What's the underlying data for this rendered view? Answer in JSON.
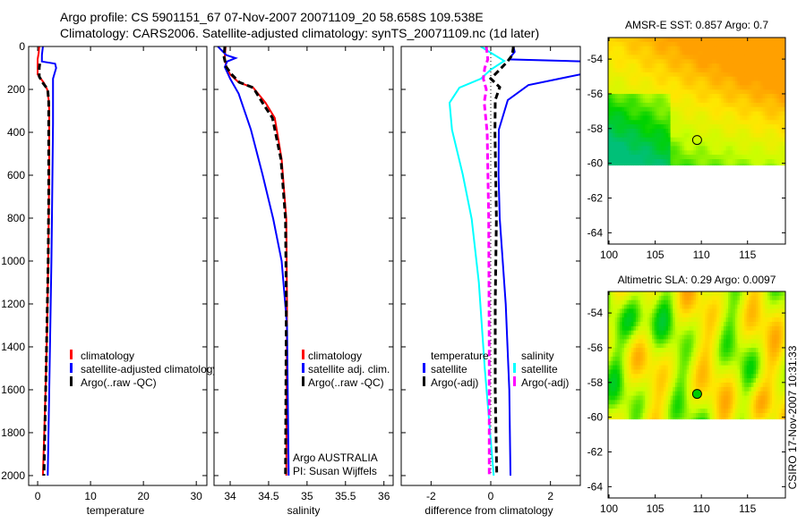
{
  "title": {
    "line1": "Argo profile: CS 5901151_67 07-Nov-2007 20071109_20 58.658S 109.538E",
    "line2": "Climatology: CARS2006. Satellite-adjusted climatology: synTS_20071109.nc (1d later)"
  },
  "credit": "CSIRO 17-Nov-2007 10:31:33",
  "chart_data": [
    {
      "type": "line",
      "xlabel": "temperature",
      "ylabel": "",
      "xlim": [
        -1.7,
        32
      ],
      "ylim": [
        2046,
        0
      ],
      "xticks": [
        0,
        10,
        20,
        30
      ],
      "yticks": [
        0,
        200,
        400,
        600,
        800,
        1000,
        1200,
        1400,
        1600,
        1800,
        2000
      ],
      "legend": [
        "climatology",
        "satellite-adjusted climatology",
        "Argo(..raw -QC)"
      ],
      "series": [
        {
          "name": "climatology",
          "color": "#ff0000",
          "dash": false,
          "depth": [
            0,
            30,
            60,
            100,
            130,
            150,
            170,
            200,
            250,
            300,
            500,
            800,
            1000,
            1300,
            1600,
            2000
          ],
          "values": [
            0.3,
            0.2,
            0.0,
            0.0,
            0.0,
            0.6,
            1.2,
            1.8,
            2.1,
            2.2,
            2.2,
            2.1,
            2.0,
            1.8,
            1.5,
            1.0
          ]
        },
        {
          "name": "satellite-adjusted climatology",
          "color": "#0000ff",
          "dash": false,
          "depth": [
            0,
            40,
            70,
            80,
            100,
            150,
            360,
            800,
            1000,
            1300,
            1600,
            2000
          ],
          "values": [
            1.0,
            0.8,
            0.8,
            3.3,
            3.5,
            2.9,
            2.9,
            2.7,
            2.6,
            2.4,
            2.2,
            1.9
          ]
        },
        {
          "name": "Argo(..raw -QC)",
          "color": "#000000",
          "dash": true,
          "depth": [
            80,
            100,
            140,
            170,
            200,
            260,
            700,
            1000,
            1500,
            2000
          ],
          "values": [
            0.4,
            0.3,
            0.3,
            1.0,
            1.9,
            2.1,
            2.1,
            2.0,
            1.6,
            1.2
          ]
        }
      ]
    },
    {
      "type": "line",
      "xlabel": "salinity",
      "xlim": [
        33.79,
        36.12
      ],
      "ylim": [
        2046,
        0
      ],
      "xticks": [
        34,
        34.5,
        35,
        35.5,
        36
      ],
      "yticks": [
        0,
        200,
        400,
        600,
        800,
        1000,
        1200,
        1400,
        1600,
        1800,
        2000
      ],
      "legend": [
        "climatology",
        "satellite adj. clim.",
        "Argo(..raw -QC)"
      ],
      "annotation": [
        "Argo AUSTRALIA",
        "PI: Susan Wijffels"
      ],
      "series": [
        {
          "name": "climatology",
          "color": "#ff0000",
          "dash": false,
          "depth": [
            0,
            50,
            96,
            130,
            167,
            192,
            262,
            333,
            525,
            804,
            1200,
            2000
          ],
          "values": [
            33.94,
            33.93,
            33.95,
            34.0,
            34.11,
            34.3,
            34.46,
            34.58,
            34.67,
            34.73,
            34.74,
            34.73
          ]
        },
        {
          "name": "satellite adj. clim.",
          "color": "#0000ff",
          "dash": false,
          "depth": [
            0,
            40,
            54,
            70,
            96,
            150,
            220,
            388,
            596,
            804,
            1000,
            1300,
            2000
          ],
          "values": [
            33.84,
            33.95,
            34.07,
            33.96,
            33.93,
            34.0,
            34.11,
            34.27,
            34.42,
            34.56,
            34.67,
            34.74,
            34.76
          ]
        },
        {
          "name": "Argo(..raw -QC)",
          "color": "#000000",
          "dash": true,
          "depth": [
            0,
            50,
            96,
            130,
            167,
            192,
            262,
            333,
            525,
            804,
            1200,
            2000
          ],
          "values": [
            33.93,
            33.92,
            33.95,
            34.02,
            34.12,
            34.3,
            34.42,
            34.55,
            34.66,
            34.72,
            34.73,
            34.72
          ]
        }
      ]
    },
    {
      "type": "line",
      "xlabel": "difference from climatology",
      "xlim": [
        -3,
        3
      ],
      "ylim": [
        2046,
        0
      ],
      "xticks": [
        -2,
        0,
        2
      ],
      "yticks": [
        0,
        200,
        400,
        600,
        800,
        1000,
        1200,
        1400,
        1600,
        1800,
        2000
      ],
      "legend_temperature": {
        "title": "temperature",
        "items": [
          "satellite",
          "Argo(-adj)"
        ]
      },
      "legend_salinity": {
        "title": "salinity",
        "items": [
          "satellite",
          "Argo(-adj)"
        ]
      },
      "series": [
        {
          "name": "temperature satellite",
          "color": "#0000ff",
          "dash": false,
          "depth": [
            0,
            25,
            60,
            70,
            80,
            130,
            180,
            250,
            388,
            600,
            800,
            1200,
            1600,
            2000
          ],
          "values": [
            0.76,
            0.8,
            0.6,
            3.2,
            3.2,
            3.0,
            1.26,
            0.57,
            0.27,
            0.26,
            0.3,
            0.5,
            0.62,
            0.66
          ]
        },
        {
          "name": "temperature Argo(-adj)",
          "color": "#000000",
          "dash": true,
          "depth": [
            0,
            40,
            70,
            108,
            150,
            190,
            250,
            400,
            800,
            1200,
            1600,
            2000
          ],
          "values": [
            0.76,
            0.72,
            0.56,
            0.3,
            0.0,
            0.3,
            0.15,
            0.14,
            0.19,
            0.15,
            0.15,
            0.2
          ]
        },
        {
          "name": "salinity satellite",
          "color": "#00ffff",
          "dash": false,
          "depth": [
            0,
            67,
            108,
            150,
            192,
            262,
            388,
            596,
            804,
            1100,
            1500,
            2000
          ],
          "values": [
            -0.34,
            0.45,
            0.0,
            -0.33,
            -1.05,
            -1.38,
            -1.3,
            -0.94,
            -0.64,
            -0.4,
            -0.2,
            0.1
          ]
        },
        {
          "name": "salinity Argo(-adj)",
          "color": "#ff00ff",
          "dash": true,
          "depth": [
            0,
            60,
            100,
            150,
            200,
            260,
            400,
            800,
            1400,
            2000
          ],
          "values": [
            -0.15,
            -0.1,
            -0.2,
            -0.25,
            -0.15,
            -0.22,
            -0.12,
            -0.07,
            -0.05,
            -0.05
          ]
        }
      ]
    },
    {
      "type": "heatmap",
      "title": "AMSR-E SST: 0.857 Argo: 0.7",
      "xlim": [
        99.9,
        119.1
      ],
      "ylim": [
        -64.65,
        -52.76
      ],
      "data_extent_lat": [
        -60.1,
        -52.76
      ],
      "xticks": [
        100,
        105,
        110,
        115
      ],
      "yticks": [
        -54,
        -56,
        -58,
        -60,
        -62,
        -64
      ],
      "marker": {
        "lon": 109.538,
        "lat": -58.658,
        "fill": "none"
      }
    },
    {
      "type": "heatmap",
      "title": "Altimetric SLA: 0.29 Argo: 0.0097",
      "xlim": [
        99.9,
        119.1
      ],
      "ylim": [
        -64.65,
        -52.76
      ],
      "data_extent_lat": [
        -60.1,
        -52.76
      ],
      "xticks": [
        100,
        105,
        110,
        115
      ],
      "yticks": [
        -54,
        -56,
        -58,
        -60,
        -62,
        -64
      ],
      "marker": {
        "lon": 109.538,
        "lat": -58.658,
        "fill": "#00cc00"
      }
    }
  ]
}
